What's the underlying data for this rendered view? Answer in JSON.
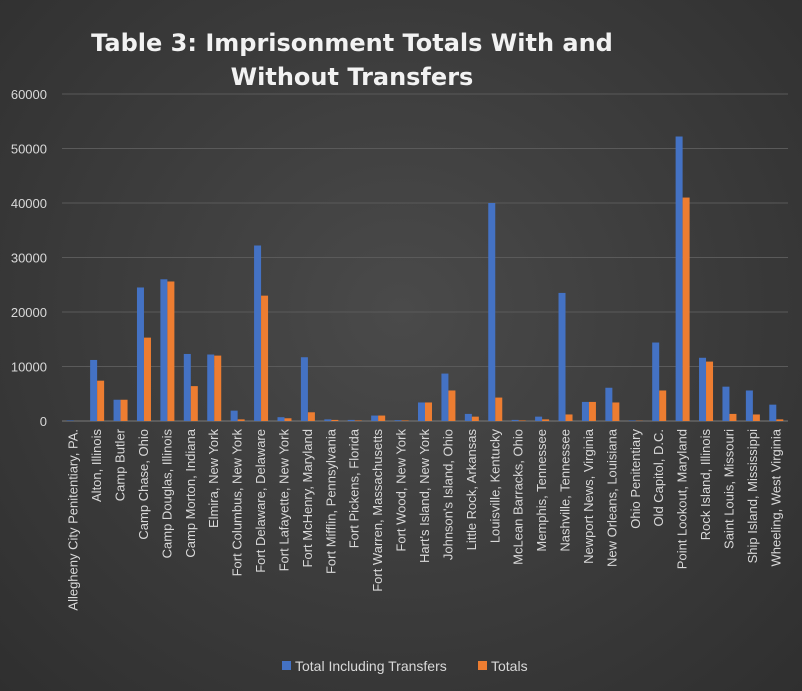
{
  "chart_data": {
    "type": "bar",
    "title": "Table 3: Imprisonment Totals With and Without Transfers",
    "title_lines": [
      "Table 3: Imprisonment Totals With and",
      "Without Transfers"
    ],
    "xlabel": "",
    "ylabel": "",
    "ylim": [
      0,
      60000
    ],
    "yticks": [
      "0",
      "10000",
      "20000",
      "30000",
      "40000",
      "50000",
      "60000"
    ],
    "grid": true,
    "legend_position": "bottom",
    "categories": [
      "Allegheny City Penitentiary, PA.",
      "Alton, Illinois",
      "Camp Butler",
      "Camp Chase, Ohio",
      "Camp Douglas, Illinois",
      "Camp Morton, Indiana",
      "Elmira, New York",
      "Fort Columbus, New York",
      "Fort Delaware, Delaware",
      "Fort Lafayette, New York",
      "Fort McHenry, Maryland",
      "Fort Mifflin, Pennsylvania",
      "Fort Pickens, Florida",
      "Fort Warren, Massachusetts",
      "Fort Wood, New York",
      "Hart's Island, New York",
      "Johnson's Island, Ohio",
      "Little Rock, Arkansas",
      "Louisville, Kentucky",
      "McLean Barracks, Ohio",
      "Memphis, Tennessee",
      "Nashville, Tennessee",
      "Newport News, Virginia",
      "New Orleans, Louisiana",
      "Ohio Penitentiary",
      "Old Capitol, D.C.",
      "Point Lookout, Maryland",
      "Rock Island, Illinois",
      "Saint Louis, Missouri",
      "Ship Island, Mississippi",
      "Wheeling, West Virginia"
    ],
    "series": [
      {
        "name": "Total Including Transfers",
        "color": "#4472c4",
        "values": [
          100,
          11200,
          3900,
          24500,
          26000,
          12300,
          12200,
          1900,
          32200,
          700,
          11700,
          300,
          200,
          1000,
          150,
          3400,
          8700,
          1300,
          40000,
          200,
          800,
          23500,
          3500,
          6100,
          100,
          14400,
          52200,
          11600,
          6300,
          5600,
          3000
        ]
      },
      {
        "name": "Totals",
        "color": "#ed7d31",
        "values": [
          0,
          7400,
          3900,
          15300,
          25600,
          6400,
          12000,
          300,
          23000,
          500,
          1600,
          200,
          100,
          1000,
          100,
          3400,
          5600,
          800,
          4300,
          100,
          300,
          1200,
          3500,
          3400,
          50,
          5600,
          41000,
          10900,
          1300,
          1200,
          300
        ]
      }
    ]
  }
}
